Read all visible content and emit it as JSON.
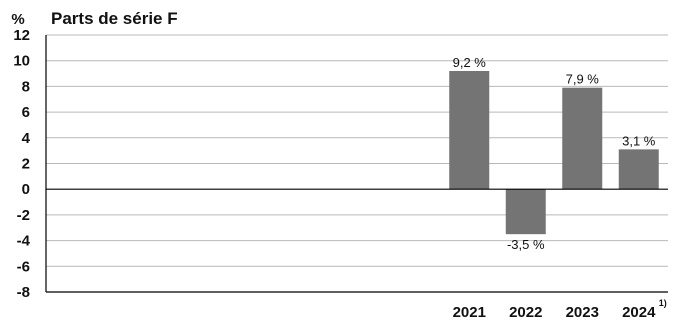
{
  "chart_data": {
    "type": "bar",
    "title": "Parts de série F",
    "ylabel": "%",
    "categories": [
      "2021",
      "2022",
      "2023",
      "2024"
    ],
    "category_footnotes": [
      "",
      "",
      "",
      "1)"
    ],
    "values": [
      9.2,
      -3.5,
      7.9,
      3.1
    ],
    "data_labels": [
      "9,2 %",
      "-3,5 %",
      "7,9 %",
      "3,1 %"
    ],
    "ylim": [
      -8,
      12
    ],
    "yticks": [
      12,
      10,
      8,
      6,
      4,
      2,
      0,
      -2,
      -4,
      -6,
      -8
    ],
    "grid": true,
    "legend": "none",
    "bar_color": "#747474",
    "grid_color": "#b9b9b9",
    "axis_color": "#000000"
  }
}
